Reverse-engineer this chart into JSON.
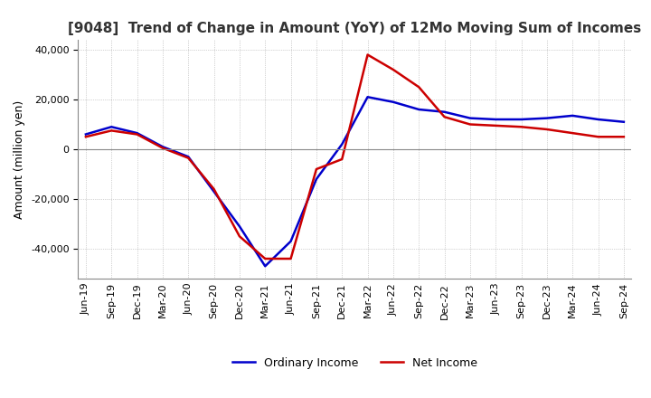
{
  "title": "[9048]  Trend of Change in Amount (YoY) of 12Mo Moving Sum of Incomes",
  "ylabel": "Amount (million yen)",
  "legend": [
    "Ordinary Income",
    "Net Income"
  ],
  "line_colors": [
    "#0000cc",
    "#cc0000"
  ],
  "x_labels": [
    "Jun-19",
    "Sep-19",
    "Dec-19",
    "Mar-20",
    "Jun-20",
    "Sep-20",
    "Dec-20",
    "Mar-21",
    "Jun-21",
    "Sep-21",
    "Dec-21",
    "Mar-22",
    "Jun-22",
    "Sep-22",
    "Dec-22",
    "Mar-23",
    "Jun-23",
    "Sep-23",
    "Dec-23",
    "Mar-24",
    "Jun-24",
    "Sep-24"
  ],
  "ordinary_income": [
    6000,
    9000,
    6500,
    1000,
    -3000,
    -17000,
    -31000,
    -47000,
    -37000,
    -12000,
    2000,
    21000,
    19000,
    16000,
    15000,
    12500,
    12000,
    12000,
    12500,
    13500,
    12000,
    11000
  ],
  "net_income": [
    5000,
    7500,
    6000,
    500,
    -3500,
    -16000,
    -35000,
    -44000,
    -44000,
    -8000,
    -4000,
    38000,
    32000,
    25000,
    13000,
    10000,
    9500,
    9000,
    8000,
    6500,
    5000,
    5000
  ],
  "ylim": [
    -52000,
    44000
  ],
  "yticks": [
    -40000,
    -20000,
    0,
    20000,
    40000
  ],
  "background_color": "#ffffff",
  "grid_color": "#aaaaaa",
  "title_fontsize": 11,
  "label_fontsize": 9,
  "tick_fontsize": 8
}
